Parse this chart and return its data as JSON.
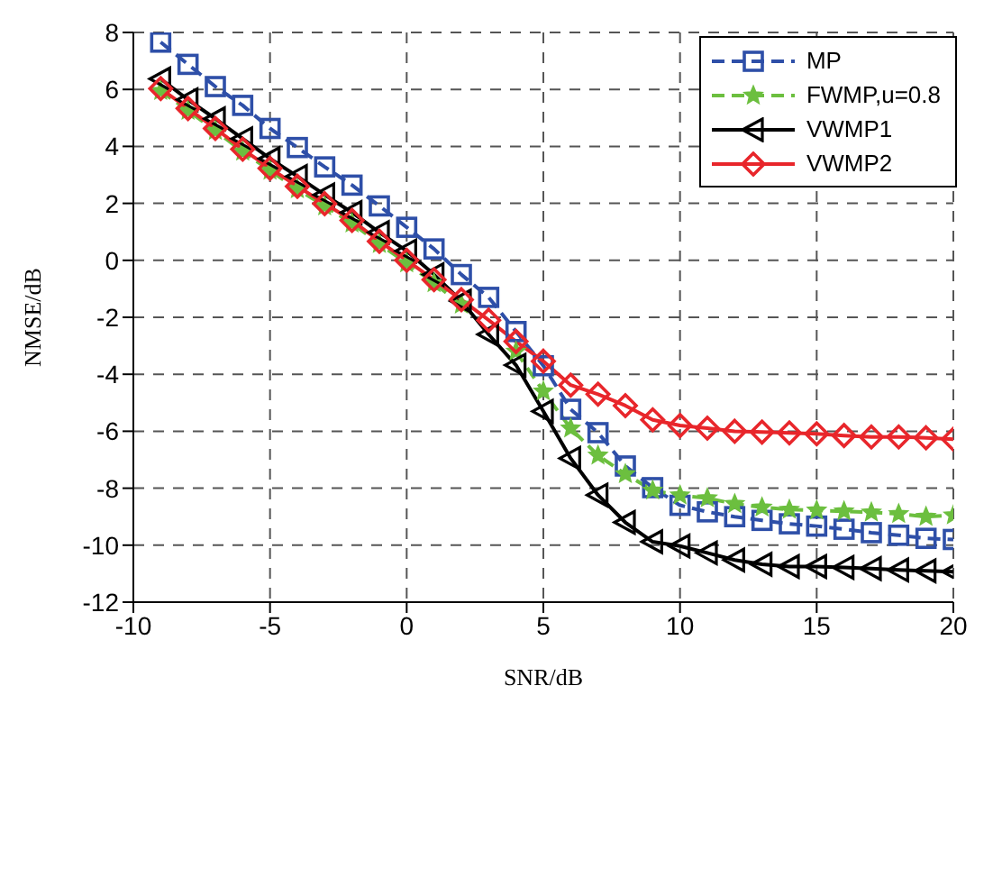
{
  "chart_data": {
    "type": "line",
    "xlabel": "SNR/dB",
    "ylabel": "NMSE/dB",
    "x": [
      -9,
      -8,
      -7,
      -6,
      -5,
      -4,
      -3,
      -2,
      -1,
      0,
      1,
      2,
      3,
      4,
      5,
      6,
      7,
      8,
      9,
      10,
      11,
      12,
      13,
      14,
      15,
      16,
      17,
      18,
      19,
      20
    ],
    "xlim": [
      -10,
      20
    ],
    "xticks": [
      -10,
      -5,
      0,
      5,
      10,
      15,
      20
    ],
    "ylim": [
      -12,
      8
    ],
    "yticks": [
      -12,
      -10,
      -8,
      -6,
      -4,
      -2,
      0,
      2,
      4,
      6,
      8
    ],
    "grid": true,
    "legend": "top right",
    "series": [
      {
        "name": "MP",
        "color": "#2e4fa8",
        "marker": "square",
        "line_style": "dashed",
        "values": [
          7.66,
          6.88,
          6.1,
          5.44,
          4.63,
          3.96,
          3.28,
          2.64,
          1.91,
          1.16,
          0.4,
          -0.5,
          -1.3,
          -2.5,
          -3.7,
          -5.23,
          -6.05,
          -7.22,
          -7.98,
          -8.6,
          -8.83,
          -9.0,
          -9.13,
          -9.25,
          -9.33,
          -9.44,
          -9.56,
          -9.65,
          -9.76,
          -9.8
        ]
      },
      {
        "name": "FWMP,u=0.8",
        "color": "#6cbf3f",
        "marker": "star",
        "line_style": "dashed",
        "values": [
          5.95,
          5.25,
          4.55,
          3.82,
          3.15,
          2.5,
          1.9,
          1.3,
          0.58,
          -0.1,
          -0.8,
          -1.55,
          null,
          -3.2,
          -4.6,
          -5.9,
          -6.85,
          -7.5,
          -8.08,
          -8.25,
          -8.35,
          -8.55,
          -8.67,
          -8.75,
          -8.78,
          -8.81,
          -8.85,
          -8.9,
          -9.0,
          -8.95
        ]
      },
      {
        "name": "VWMP1",
        "color": "#000000",
        "marker": "triangle",
        "line_style": "solid",
        "values": [
          6.37,
          5.64,
          4.97,
          4.27,
          3.57,
          2.95,
          2.3,
          1.68,
          0.98,
          0.33,
          -0.5,
          -1.43,
          -2.6,
          -3.68,
          -5.3,
          -6.95,
          -8.24,
          -9.2,
          -9.88,
          -10.03,
          -10.27,
          -10.52,
          -10.67,
          -10.75,
          -10.75,
          -10.78,
          -10.82,
          -10.87,
          -10.9,
          -10.93
        ]
      },
      {
        "name": "VWMP2",
        "color": "#e8262b",
        "marker": "diamond",
        "line_style": "solid",
        "values": [
          6.03,
          5.33,
          4.63,
          3.9,
          3.23,
          2.6,
          1.99,
          1.4,
          0.67,
          0,
          -0.68,
          -1.38,
          -2.1,
          -2.85,
          -3.54,
          -4.38,
          -4.7,
          -5.1,
          -5.6,
          -5.8,
          -5.89,
          -6.0,
          -6.03,
          -6.06,
          -6.09,
          -6.15,
          -6.2,
          -6.2,
          -6.23,
          -6.28
        ]
      }
    ]
  }
}
